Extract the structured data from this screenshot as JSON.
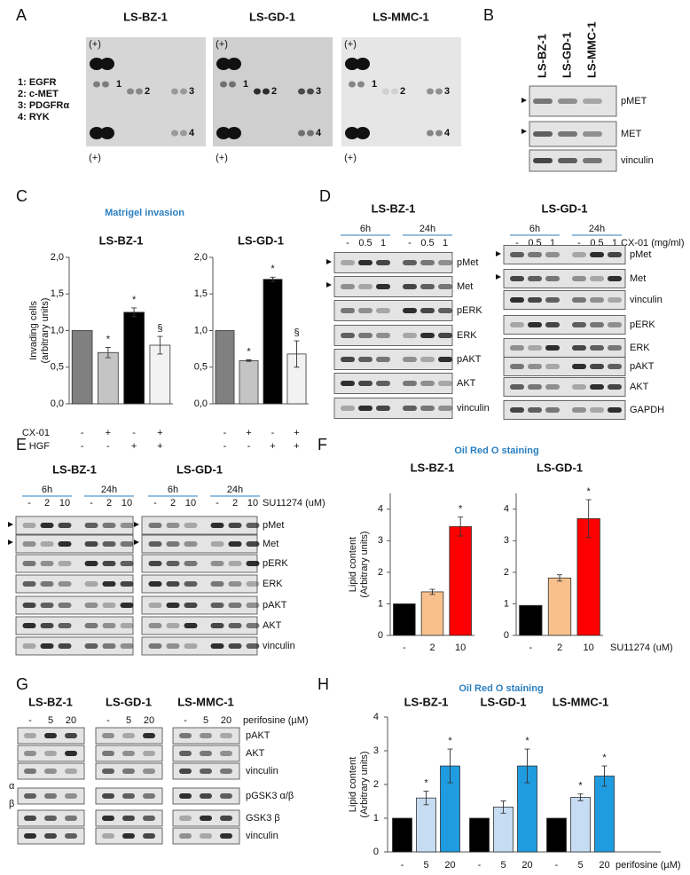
{
  "panel_labels": [
    "A",
    "B",
    "C",
    "D",
    "E",
    "F",
    "G",
    "H"
  ],
  "panel_a": {
    "titles": [
      "LS-BZ-1",
      "LS-GD-1",
      "LS-MMC-1"
    ],
    "plus": "(+)",
    "legend": [
      "1: EGFR",
      "2: c-MET",
      "3: PDGFRα",
      "4: RYK"
    ],
    "legend_colors": [
      "#1f77d0",
      "#e02020",
      "#111111",
      "#20b050"
    ],
    "spot_labels": [
      "1",
      "2",
      "3",
      "4"
    ]
  },
  "panel_b": {
    "lanes": [
      "LS-BZ-1",
      "LS-GD-1",
      "LS-MMC-1"
    ],
    "rows": [
      "pMET",
      "MET",
      "vinculin"
    ]
  },
  "panel_c": {
    "title": "Matrigel invasion",
    "conditions": [
      {
        "name": "CX-01",
        "values": [
          "-",
          "+",
          "-",
          "+"
        ]
      },
      {
        "name": "HGF",
        "values": [
          "-",
          "-",
          "+",
          "+"
        ]
      }
    ]
  },
  "panel_d": {
    "titles": [
      "LS-BZ-1",
      "LS-GD-1"
    ],
    "times": [
      "6h",
      "24h"
    ],
    "lanes": [
      "-",
      "0.5",
      "1"
    ],
    "treatment": "CX-01 (mg/ml)",
    "rows_left": [
      "pMet",
      "Met",
      "pERK",
      "ERK",
      "pAKT",
      "AKT",
      "vinculin"
    ],
    "rows_right": [
      "pMet",
      "Met",
      "vinculin",
      "pERK",
      "ERK",
      "pAKT",
      "AKT",
      "GAPDH"
    ]
  },
  "panel_e": {
    "titles": [
      "LS-BZ-1",
      "LS-GD-1"
    ],
    "times": [
      "6h",
      "24h"
    ],
    "lanes": [
      "-",
      "2",
      "10"
    ],
    "treatment": "SU11274 (uM)",
    "rows": [
      "pMet",
      "Met",
      "pERK",
      "ERK",
      "pAKT",
      "AKT",
      "vinculin"
    ]
  },
  "panel_f": {
    "title": "Oil Red O staining",
    "treatment": "SU11274 (uM)"
  },
  "panel_g": {
    "titles": [
      "LS-BZ-1",
      "LS-GD-1",
      "LS-MMC-1"
    ],
    "lanes": [
      "-",
      "5",
      "20"
    ],
    "treatment": "perifosine (µM)",
    "rows": [
      "pAKT",
      "AKT",
      "vinculin",
      "pGSK3 α/β",
      "GSK3 β",
      "vinculin"
    ],
    "isoforms": [
      "α",
      "β"
    ]
  },
  "panel_h": {
    "title": "Oil Red O staining",
    "treatment": "perifosine (µM)"
  },
  "chart_data": [
    {
      "type": "bar",
      "title": "LS-BZ-1",
      "y_label": [
        "Invading cells",
        "(arbitrary units)"
      ],
      "values": [
        1.0,
        0.7,
        1.25,
        0.8
      ],
      "errors": [
        0,
        0.07,
        0.06,
        0.12
      ],
      "annotations": [
        null,
        "*",
        "*",
        "§"
      ],
      "colors": [
        "#808080",
        "#c4c4c4",
        "#000000",
        "#f2f2f2"
      ],
      "ylim": [
        0,
        2
      ],
      "yticks": [
        {
          "value": 0,
          "label": "0,0"
        },
        {
          "value": 0.5,
          "label": "0,5"
        },
        {
          "value": 1,
          "label": "1,0"
        },
        {
          "value": 1.5,
          "label": "1,5"
        },
        {
          "value": 2,
          "label": "2,0"
        }
      ]
    },
    {
      "type": "bar",
      "title": "LS-GD-1",
      "values": [
        1.0,
        0.59,
        1.7,
        0.68
      ],
      "errors": [
        0,
        0.01,
        0.03,
        0.18
      ],
      "annotations": [
        null,
        "*",
        "*",
        "§"
      ],
      "colors": [
        "#808080",
        "#c4c4c4",
        "#000000",
        "#f2f2f2"
      ],
      "ylim": [
        0,
        2
      ],
      "yticks": [
        {
          "value": 0,
          "label": "0,0"
        },
        {
          "value": 0.5,
          "label": "0,5"
        },
        {
          "value": 1,
          "label": "1,0"
        },
        {
          "value": 1.5,
          "label": "1,5"
        },
        {
          "value": 2,
          "label": "2,0"
        }
      ]
    },
    {
      "type": "bar",
      "title": "LS-BZ-1",
      "y_label": [
        "Lipid content",
        "(Arbitrary units)"
      ],
      "categories": [
        "-",
        "2",
        "10"
      ],
      "values": [
        1.0,
        1.38,
        3.45
      ],
      "errors": [
        0,
        0.08,
        0.3
      ],
      "annotations": [
        null,
        null,
        "*"
      ],
      "colors": [
        "#000000",
        "#f7c08c",
        "#ff0000"
      ],
      "ylim": [
        0,
        4.5
      ],
      "yticks": [
        0,
        1,
        2,
        3,
        4
      ]
    },
    {
      "type": "bar",
      "title": "LS-GD-1",
      "categories": [
        "-",
        "2",
        "10"
      ],
      "values": [
        0.95,
        1.82,
        3.7
      ],
      "errors": [
        0,
        0.1,
        0.6
      ],
      "annotations": [
        null,
        null,
        "*"
      ],
      "colors": [
        "#000000",
        "#f7c08c",
        "#ff0000"
      ],
      "ylim": [
        0,
        4.5
      ],
      "yticks": [
        0,
        1,
        2,
        3,
        4
      ]
    },
    {
      "type": "grouped_bar",
      "y_label": [
        "Lipid content",
        "(Arbitrary units)"
      ],
      "categories": [
        "LS-BZ-1",
        "LS-GD-1",
        "LS-MMC-1"
      ],
      "series": [
        {
          "name": "-",
          "color": "#000000",
          "values": [
            1,
            1,
            1
          ],
          "errors": [
            0,
            0,
            0
          ],
          "annotations": [
            null,
            null,
            null
          ]
        },
        {
          "name": "5",
          "color": "#c6dcf2",
          "values": [
            1.6,
            1.33,
            1.62
          ],
          "errors": [
            0.2,
            0.18,
            0.1
          ],
          "annotations": [
            "*",
            null,
            "*"
          ]
        },
        {
          "name": "20",
          "color": "#1f9be0",
          "values": [
            2.55,
            2.55,
            2.25
          ],
          "errors": [
            0.5,
            0.5,
            0.3
          ],
          "annotations": [
            "*",
            "*",
            "*"
          ]
        }
      ],
      "ylim": [
        0,
        4
      ],
      "yticks": [
        0,
        1,
        2,
        3,
        4
      ]
    }
  ]
}
